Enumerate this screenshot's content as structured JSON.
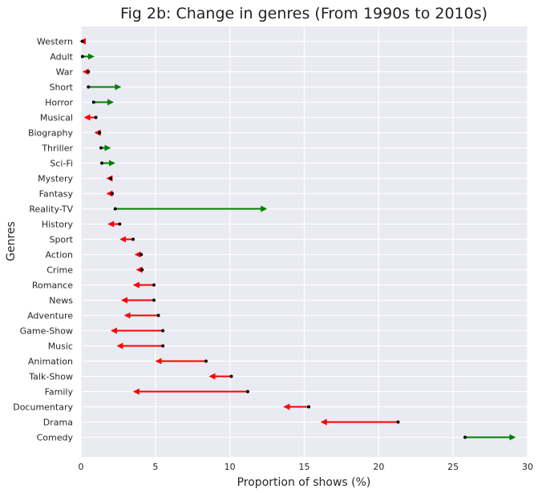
{
  "chart_data": {
    "type": "dumbbell-arrow",
    "title": "Fig 2b: Change in genres (From 1990s to 2010s)",
    "xlabel": "Proportion of shows (%)",
    "ylabel": "Genres",
    "xlim": [
      0,
      30
    ],
    "xticks": [
      0,
      5,
      10,
      15,
      20,
      25,
      30
    ],
    "grid": true,
    "background": "#eaeaf2",
    "increase_color": "#008000",
    "decrease_color": "#ff0000",
    "start_marker_color": "#000000",
    "categories": [
      "Western",
      "Adult",
      "War",
      "Short",
      "Horror",
      "Musical",
      "Biography",
      "Thriller",
      "Sci-Fi",
      "Mystery",
      "Fantasy",
      "Reality-TV",
      "History",
      "Sport",
      "Action",
      "Crime",
      "Romance",
      "News",
      "Adventure",
      "Game-Show",
      "Music",
      "Animation",
      "Talk-Show",
      "Family",
      "Documentary",
      "Drama",
      "Comedy"
    ],
    "series": [
      {
        "name": "1990s",
        "values": [
          0.1,
          0.1,
          0.5,
          0.5,
          0.85,
          1.0,
          1.25,
          1.35,
          1.4,
          2.0,
          2.1,
          2.3,
          2.6,
          3.5,
          4.05,
          4.1,
          4.9,
          4.9,
          5.2,
          5.5,
          5.5,
          8.4,
          10.1,
          11.2,
          15.3,
          21.3,
          25.8
        ]
      },
      {
        "name": "2010s",
        "values": [
          0.0,
          0.8,
          0.2,
          2.6,
          2.1,
          0.3,
          1.0,
          1.9,
          2.2,
          1.8,
          1.8,
          12.4,
          1.9,
          2.7,
          3.7,
          3.8,
          3.6,
          2.8,
          3.0,
          2.1,
          2.5,
          5.1,
          8.7,
          3.6,
          13.7,
          16.2,
          29.1
        ]
      }
    ]
  }
}
